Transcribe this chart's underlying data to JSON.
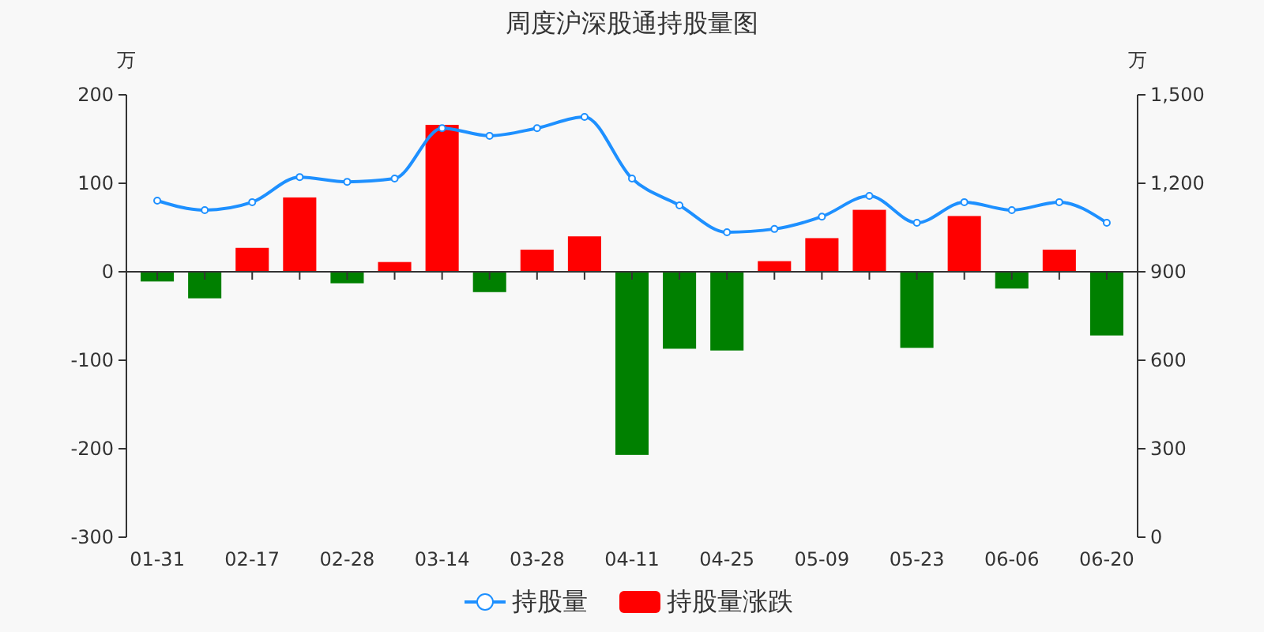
{
  "chart_data": {
    "type": "bar",
    "title": "周度沪深股通持股量图",
    "ylabel": "万",
    "y2label": "万",
    "categories": [
      "01-31",
      null,
      "02-17",
      null,
      "02-28",
      null,
      "03-14",
      null,
      "03-28",
      null,
      "04-11",
      null,
      "04-25",
      null,
      "05-09",
      null,
      "05-23",
      null,
      "06-06",
      null,
      "06-20"
    ],
    "series": [
      {
        "name": "持股量",
        "type": "line",
        "axis": "y2",
        "color": "#1e90ff",
        "marker": "circle",
        "values": [
          1141,
          1109,
          1136,
          1221,
          1205,
          1216,
          1387,
          1361,
          1387,
          1425,
          1216,
          1125,
          1034,
          1045,
          1087,
          1157,
          1066,
          1136,
          1109,
          1136,
          1066
        ]
      },
      {
        "name": "持股量涨跌",
        "color": "#ff0000",
        "colors": [
          "#008000",
          "#008000",
          "#ff0000",
          "#ff0000",
          "#008000",
          "#ff0000",
          "#ff0000",
          "#008000",
          "#ff0000",
          "#ff0000",
          "#008000",
          "#008000",
          "#008000",
          "#ff0000",
          "#ff0000",
          "#ff0000",
          "#008000",
          "#ff0000",
          "#008000",
          "#ff0000",
          "#008000"
        ],
        "values": [
          -11,
          -30,
          27,
          84,
          -13,
          11,
          166,
          -23,
          25,
          40,
          -207,
          -87,
          -89,
          12,
          38,
          70,
          -86,
          63,
          -19,
          25,
          -72
        ]
      }
    ],
    "ylim": [
      -300,
      200
    ],
    "yticks": [
      -300,
      -200,
      -100,
      0,
      100,
      200
    ],
    "y2lim": [
      0,
      1500
    ],
    "y2ticks": [
      0,
      {
        "value": 300,
        "label": "300"
      },
      {
        "value": 600,
        "label": "600"
      },
      {
        "value": 900,
        "label": "900"
      },
      {
        "value": 1200,
        "label": "1,200"
      },
      {
        "value": 1500,
        "label": "1,500"
      }
    ],
    "legend": "bottom"
  }
}
